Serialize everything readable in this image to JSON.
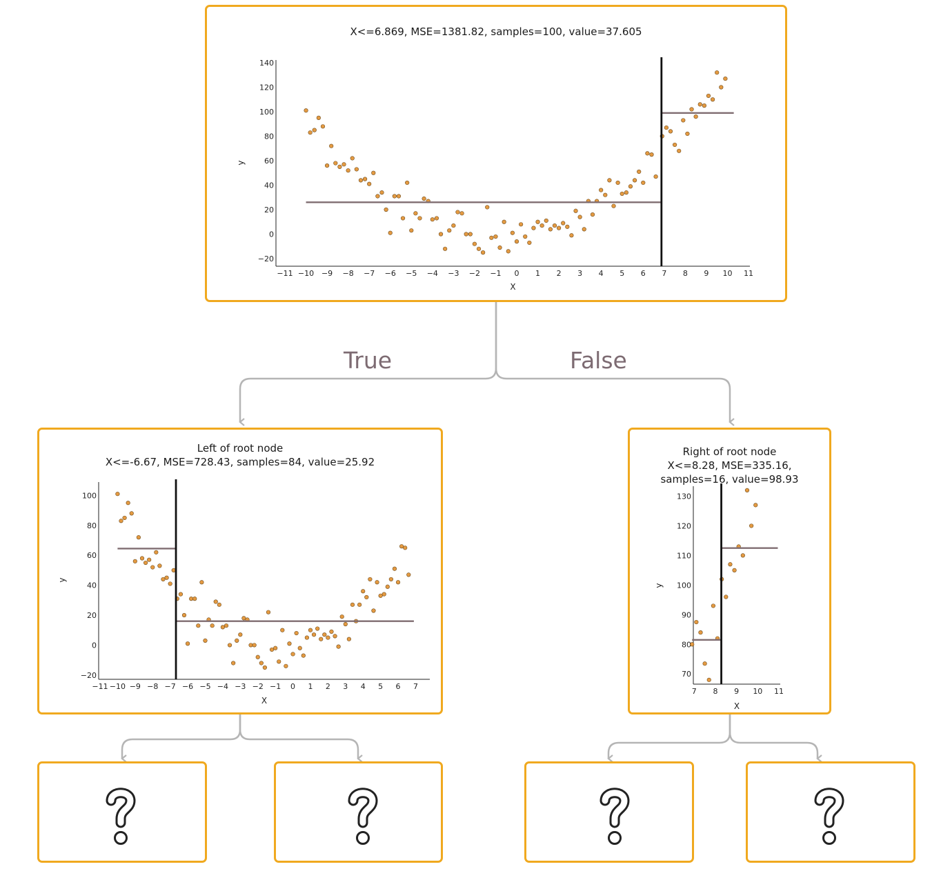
{
  "colors": {
    "node_border": "#f0a91f",
    "point_fill": "#e49a42",
    "split_line": "#111111",
    "mean_line": "#7f6c70",
    "edge": "#b5b5b5",
    "edge_label": "#7d6b72"
  },
  "edges": {
    "true_label": "True",
    "false_label": "False"
  },
  "nodes": {
    "root": {
      "title": "X<=6.869, MSE=1381.82, samples=100, value=37.605"
    },
    "left": {
      "title_line1": "Left of root node",
      "title_line2": "X<=-6.67, MSE=728.43, samples=84, value=25.92"
    },
    "right": {
      "title_line1": "Right of root node",
      "title_line2": "X<=8.28, MSE=335.16,",
      "title_line3": "samples=16, value=98.93"
    },
    "leaves": [
      "question-icon",
      "question-icon",
      "question-icon",
      "question-icon"
    ]
  },
  "chart_data": [
    {
      "type": "scatter",
      "name": "root",
      "xlabel": "X",
      "ylabel": "y",
      "xlim": [
        -11,
        11
      ],
      "ylim": [
        -20,
        140
      ],
      "xticks": [
        -11,
        -10,
        -9,
        -8,
        -7,
        -6,
        -5,
        -4,
        -3,
        -2,
        -1,
        0,
        1,
        2,
        3,
        4,
        5,
        6,
        7,
        8,
        9,
        10,
        11
      ],
      "yticks": [
        -20,
        0,
        20,
        40,
        60,
        80,
        100,
        120,
        140
      ],
      "split": 6.869,
      "means": [
        {
          "x0": -10,
          "x1": 6.869,
          "y": 26
        },
        {
          "x0": 6.869,
          "x1": 10.3,
          "y": 99
        }
      ],
      "points": [
        [
          -10,
          101
        ],
        [
          -9.8,
          83
        ],
        [
          -9.6,
          85
        ],
        [
          -9.4,
          95
        ],
        [
          -9.2,
          88
        ],
        [
          -9,
          56
        ],
        [
          -8.8,
          72
        ],
        [
          -8.6,
          58
        ],
        [
          -8.4,
          55
        ],
        [
          -8.2,
          57
        ],
        [
          -8,
          52
        ],
        [
          -7.8,
          62
        ],
        [
          -7.6,
          53
        ],
        [
          -7.4,
          44
        ],
        [
          -7.2,
          45
        ],
        [
          -7,
          41
        ],
        [
          -6.8,
          50
        ],
        [
          -6.6,
          31
        ],
        [
          -6.4,
          34
        ],
        [
          -6.2,
          20
        ],
        [
          -6,
          1
        ],
        [
          -5.8,
          31
        ],
        [
          -5.6,
          31
        ],
        [
          -5.4,
          13
        ],
        [
          -5.2,
          42
        ],
        [
          -5,
          3
        ],
        [
          -4.8,
          17
        ],
        [
          -4.6,
          13
        ],
        [
          -4.4,
          29
        ],
        [
          -4.2,
          27
        ],
        [
          -4,
          12
        ],
        [
          -3.8,
          13
        ],
        [
          -3.6,
          0
        ],
        [
          -3.4,
          -12
        ],
        [
          -3.2,
          3
        ],
        [
          -3,
          7
        ],
        [
          -2.8,
          18
        ],
        [
          -2.6,
          17
        ],
        [
          -2.4,
          0
        ],
        [
          -2.2,
          0
        ],
        [
          -2,
          -8
        ],
        [
          -1.8,
          -12
        ],
        [
          -1.6,
          -15
        ],
        [
          -1.4,
          22
        ],
        [
          -1.2,
          -3
        ],
        [
          -1,
          -2
        ],
        [
          -0.8,
          -11
        ],
        [
          -0.6,
          10
        ],
        [
          -0.4,
          -14
        ],
        [
          -0.2,
          1
        ],
        [
          0,
          -6
        ],
        [
          0.2,
          8
        ],
        [
          0.4,
          -2
        ],
        [
          0.6,
          -7
        ],
        [
          0.8,
          5
        ],
        [
          1,
          10
        ],
        [
          1.2,
          7
        ],
        [
          1.4,
          11
        ],
        [
          1.6,
          4
        ],
        [
          1.8,
          7
        ],
        [
          2,
          5
        ],
        [
          2.2,
          9
        ],
        [
          2.4,
          6
        ],
        [
          2.6,
          -1
        ],
        [
          2.8,
          19
        ],
        [
          3,
          14
        ],
        [
          3.2,
          4
        ],
        [
          3.4,
          27
        ],
        [
          3.6,
          16
        ],
        [
          3.8,
          27
        ],
        [
          4,
          36
        ],
        [
          4.2,
          32
        ],
        [
          4.4,
          44
        ],
        [
          4.6,
          23
        ],
        [
          4.8,
          42
        ],
        [
          5,
          33
        ],
        [
          5.2,
          34
        ],
        [
          5.4,
          39
        ],
        [
          5.6,
          44
        ],
        [
          5.8,
          51
        ],
        [
          6,
          42
        ],
        [
          6.2,
          66
        ],
        [
          6.4,
          65
        ],
        [
          6.6,
          47
        ],
        [
          6.9,
          80
        ],
        [
          7.1,
          87
        ],
        [
          7.3,
          84
        ],
        [
          7.5,
          73
        ],
        [
          7.7,
          68
        ],
        [
          7.9,
          93
        ],
        [
          8.1,
          82
        ],
        [
          8.3,
          102
        ],
        [
          8.5,
          96
        ],
        [
          8.7,
          106
        ],
        [
          8.9,
          105
        ],
        [
          9.1,
          113
        ],
        [
          9.3,
          110
        ],
        [
          9.5,
          132
        ],
        [
          9.7,
          120
        ],
        [
          9.9,
          127
        ]
      ]
    },
    {
      "type": "scatter",
      "name": "left",
      "xlabel": "X",
      "ylabel": "y",
      "xlim": [
        -11,
        7.1
      ],
      "ylim": [
        -21,
        108
      ],
      "xticks": [
        -11,
        -10,
        -9,
        -8,
        -7,
        -6,
        -5,
        -4,
        -3,
        -2,
        -1,
        0,
        1,
        2,
        3,
        4,
        5,
        6,
        7
      ],
      "yticks": [
        -20,
        0,
        20,
        40,
        60,
        80,
        100
      ],
      "split": -6.67,
      "means": [
        {
          "x0": -10,
          "x1": -6.67,
          "y": 64.5
        },
        {
          "x0": -6.67,
          "x1": 6.9,
          "y": 16
        }
      ],
      "points": [
        [
          -10,
          101
        ],
        [
          -9.8,
          83
        ],
        [
          -9.6,
          85
        ],
        [
          -9.4,
          95
        ],
        [
          -9.2,
          88
        ],
        [
          -9,
          56
        ],
        [
          -8.8,
          72
        ],
        [
          -8.6,
          58
        ],
        [
          -8.4,
          55
        ],
        [
          -8.2,
          57
        ],
        [
          -8,
          52
        ],
        [
          -7.8,
          62
        ],
        [
          -7.6,
          53
        ],
        [
          -7.4,
          44
        ],
        [
          -7.2,
          45
        ],
        [
          -7,
          41
        ],
        [
          -6.8,
          50
        ],
        [
          -6.6,
          31
        ],
        [
          -6.4,
          34
        ],
        [
          -6.2,
          20
        ],
        [
          -6,
          1
        ],
        [
          -5.8,
          31
        ],
        [
          -5.6,
          31
        ],
        [
          -5.4,
          13
        ],
        [
          -5.2,
          42
        ],
        [
          -5,
          3
        ],
        [
          -4.8,
          17
        ],
        [
          -4.6,
          13
        ],
        [
          -4.4,
          29
        ],
        [
          -4.2,
          27
        ],
        [
          -4,
          12
        ],
        [
          -3.8,
          13
        ],
        [
          -3.6,
          0
        ],
        [
          -3.4,
          -12
        ],
        [
          -3.2,
          3
        ],
        [
          -3,
          7
        ],
        [
          -2.8,
          18
        ],
        [
          -2.6,
          17
        ],
        [
          -2.4,
          0
        ],
        [
          -2.2,
          0
        ],
        [
          -2,
          -8
        ],
        [
          -1.8,
          -12
        ],
        [
          -1.6,
          -15
        ],
        [
          -1.4,
          22
        ],
        [
          -1.2,
          -3
        ],
        [
          -1,
          -2
        ],
        [
          -0.8,
          -11
        ],
        [
          -0.6,
          10
        ],
        [
          -0.4,
          -14
        ],
        [
          -0.2,
          1
        ],
        [
          0,
          -6
        ],
        [
          0.2,
          8
        ],
        [
          0.4,
          -2
        ],
        [
          0.6,
          -7
        ],
        [
          0.8,
          5
        ],
        [
          1,
          10
        ],
        [
          1.2,
          7
        ],
        [
          1.4,
          11
        ],
        [
          1.6,
          4
        ],
        [
          1.8,
          7
        ],
        [
          2,
          5
        ],
        [
          2.2,
          9
        ],
        [
          2.4,
          6
        ],
        [
          2.6,
          -1
        ],
        [
          2.8,
          19
        ],
        [
          3,
          14
        ],
        [
          3.2,
          4
        ],
        [
          3.4,
          27
        ],
        [
          3.6,
          16
        ],
        [
          3.8,
          27
        ],
        [
          4,
          36
        ],
        [
          4.2,
          32
        ],
        [
          4.4,
          44
        ],
        [
          4.6,
          23
        ],
        [
          4.8,
          42
        ],
        [
          5,
          33
        ],
        [
          5.2,
          34
        ],
        [
          5.4,
          39
        ],
        [
          5.6,
          44
        ],
        [
          5.8,
          51
        ],
        [
          6,
          42
        ],
        [
          6.2,
          66
        ],
        [
          6.4,
          65
        ],
        [
          6.6,
          47
        ]
      ]
    },
    {
      "type": "scatter",
      "name": "right",
      "xlabel": "X",
      "ylabel": "y",
      "xlim": [
        6.6,
        11
      ],
      "ylim": [
        64,
        135
      ],
      "xticks": [
        7,
        8,
        9,
        10,
        11
      ],
      "yticks": [
        70,
        80,
        90,
        100,
        110,
        120,
        130
      ],
      "split": 8.28,
      "means": [
        {
          "x0": 6.9,
          "x1": 8.28,
          "y": 81.5
        },
        {
          "x0": 8.28,
          "x1": 10.95,
          "y": 112.5
        }
      ],
      "points": [
        [
          6.9,
          80
        ],
        [
          7.1,
          87.5
        ],
        [
          7.3,
          84
        ],
        [
          7.5,
          73.5
        ],
        [
          7.7,
          68
        ],
        [
          7.9,
          93
        ],
        [
          8.1,
          82
        ],
        [
          8.3,
          102
        ],
        [
          8.5,
          96
        ],
        [
          8.7,
          107
        ],
        [
          8.9,
          105
        ],
        [
          9.1,
          113
        ],
        [
          9.3,
          110
        ],
        [
          9.5,
          132
        ],
        [
          9.7,
          120
        ],
        [
          9.9,
          127
        ]
      ]
    }
  ]
}
